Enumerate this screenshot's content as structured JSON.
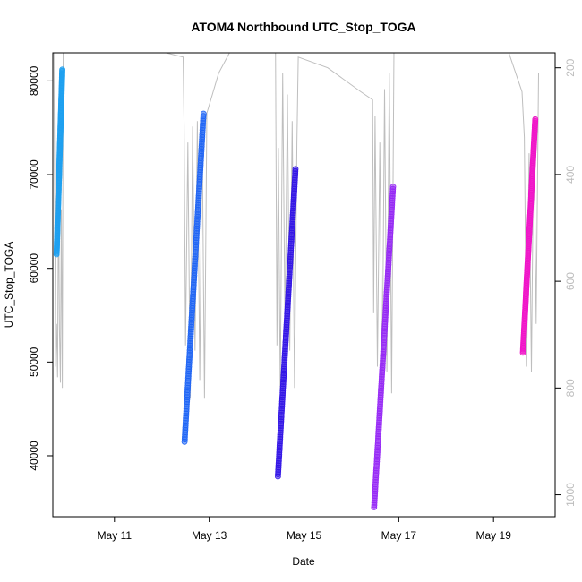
{
  "chart_data": {
    "type": "scatter",
    "title": "ATOM4 Northbound UTC_Stop_TOGA",
    "xlabel": "Date",
    "ylabel": "UTC_Stop_TOGA",
    "x_ticks": [
      "May 11",
      "May 13",
      "May 15",
      "May 17",
      "May 19"
    ],
    "y_ticks": [
      "40000",
      "50000",
      "60000",
      "70000",
      "80000"
    ],
    "y2_ticks": [
      "200",
      "400",
      "600",
      "800",
      "1000"
    ],
    "xlim_days": [
      9.7,
      20.3
    ],
    "ylim": [
      33500,
      83000
    ],
    "y2lim": [
      1041,
      172
    ],
    "y2_reversed": true,
    "series": [
      {
        "color": "#1ea0f0",
        "x_start_day": 9.78,
        "x_end_day": 9.9,
        "y_start": 61500,
        "y_end": 81200
      },
      {
        "color": "#1e64f5",
        "x_start_day": 12.48,
        "x_end_day": 12.88,
        "y_start": 41500,
        "y_end": 76500
      },
      {
        "color": "#3214e6",
        "x_start_day": 14.45,
        "x_end_day": 14.82,
        "y_start": 37800,
        "y_end": 70600
      },
      {
        "color": "#9628f5",
        "x_start_day": 16.48,
        "x_end_day": 16.88,
        "y_start": 34500,
        "y_end": 68700
      },
      {
        "color": "#f014c8",
        "x_start_day": 19.62,
        "x_end_day": 19.88,
        "y_start": 51000,
        "y_end": 75900
      }
    ],
    "gray_line": {
      "color": "#bebebe",
      "x_day": [
        9.72,
        9.76,
        9.78,
        9.8,
        9.82,
        9.84,
        9.86,
        9.88,
        9.9,
        9.92,
        10.2,
        11.0,
        11.5,
        12.0,
        12.45,
        12.47,
        12.5,
        12.55,
        12.6,
        12.65,
        12.7,
        12.75,
        12.8,
        12.85,
        12.9,
        12.95,
        13.2,
        13.8,
        14.2,
        14.4,
        14.43,
        14.46,
        14.5,
        14.55,
        14.6,
        14.65,
        14.7,
        14.75,
        14.8,
        14.85,
        14.88,
        15.5,
        16.2,
        16.45,
        16.47,
        16.5,
        16.55,
        16.6,
        16.65,
        16.7,
        16.75,
        16.8,
        16.85,
        16.9,
        17.2,
        17.8,
        18.4,
        19.05,
        19.6,
        19.65,
        19.7,
        19.75,
        19.8,
        19.85,
        19.9,
        19.95
      ],
      "y2": [
        160,
        760,
        680,
        780,
        420,
        690,
        790,
        465,
        800,
        140,
        120,
        135,
        155,
        170,
        180,
        310,
        720,
        340,
        820,
        310,
        730,
        300,
        785,
        295,
        820,
        285,
        210,
        110,
        100,
        165,
        720,
        350,
        810,
        210,
        690,
        250,
        730,
        300,
        800,
        340,
        180,
        200,
        245,
        260,
        660,
        290,
        760,
        340,
        810,
        240,
        770,
        210,
        810,
        140,
        80,
        60,
        70,
        100,
        245,
        330,
        760,
        360,
        770,
        290,
        680,
        210
      ]
    }
  }
}
